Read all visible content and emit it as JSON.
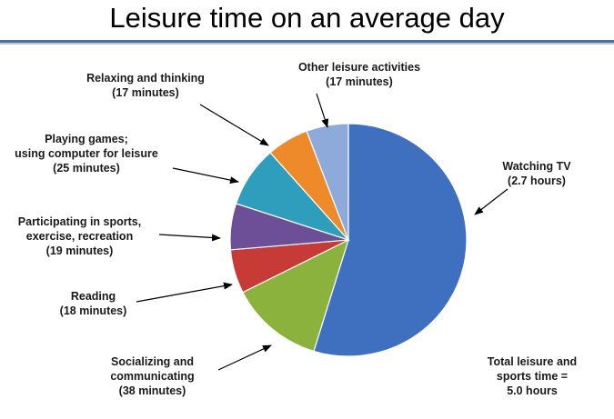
{
  "title": "Leisure time on an average day",
  "chart_data": {
    "type": "pie",
    "title": "Leisure time on an average day",
    "slices": [
      {
        "label": "Watching TV",
        "value_text": "(2.7 hours)",
        "minutes": 162,
        "color": "#3f6fbf"
      },
      {
        "label": "Socializing and communicating",
        "value_text": "(38 minutes)",
        "minutes": 38,
        "color": "#8bb23c"
      },
      {
        "label": "Reading",
        "value_text": "(18 minutes)",
        "minutes": 18,
        "color": "#c63b35"
      },
      {
        "label": "Participating in sports, exercise, recreation",
        "value_text": "(19 minutes)",
        "minutes": 19,
        "color": "#6d4f98"
      },
      {
        "label": "Playing games; using computer for leisure",
        "value_text": "(25 minutes)",
        "minutes": 25,
        "color": "#2f9ebd"
      },
      {
        "label": "Relaxing and thinking",
        "value_text": "(17 minutes)",
        "minutes": 17,
        "color": "#ef8a2b"
      },
      {
        "label": "Other leisure activities",
        "value_text": "(17 minutes)",
        "minutes": 17,
        "color": "#8eaadb"
      }
    ],
    "label_lines": {
      "watching_tv": [
        "Watching TV",
        "(2.7 hours)"
      ],
      "socializing": [
        "Socializing and",
        "communicating",
        "(38 minutes)"
      ],
      "reading": [
        "Reading",
        "(18 minutes)"
      ],
      "sports": [
        "Participating in sports,",
        "exercise, recreation",
        "(19 minutes)"
      ],
      "games": [
        "Playing games;",
        "using computer for leisure",
        "(25 minutes)"
      ],
      "relaxing": [
        "Relaxing and thinking",
        "(17 minutes)"
      ],
      "other": [
        "Other leisure activities",
        "(17 minutes)"
      ]
    },
    "annotation": [
      "Total leisure and",
      "sports time =",
      "5.0 hours"
    ]
  }
}
